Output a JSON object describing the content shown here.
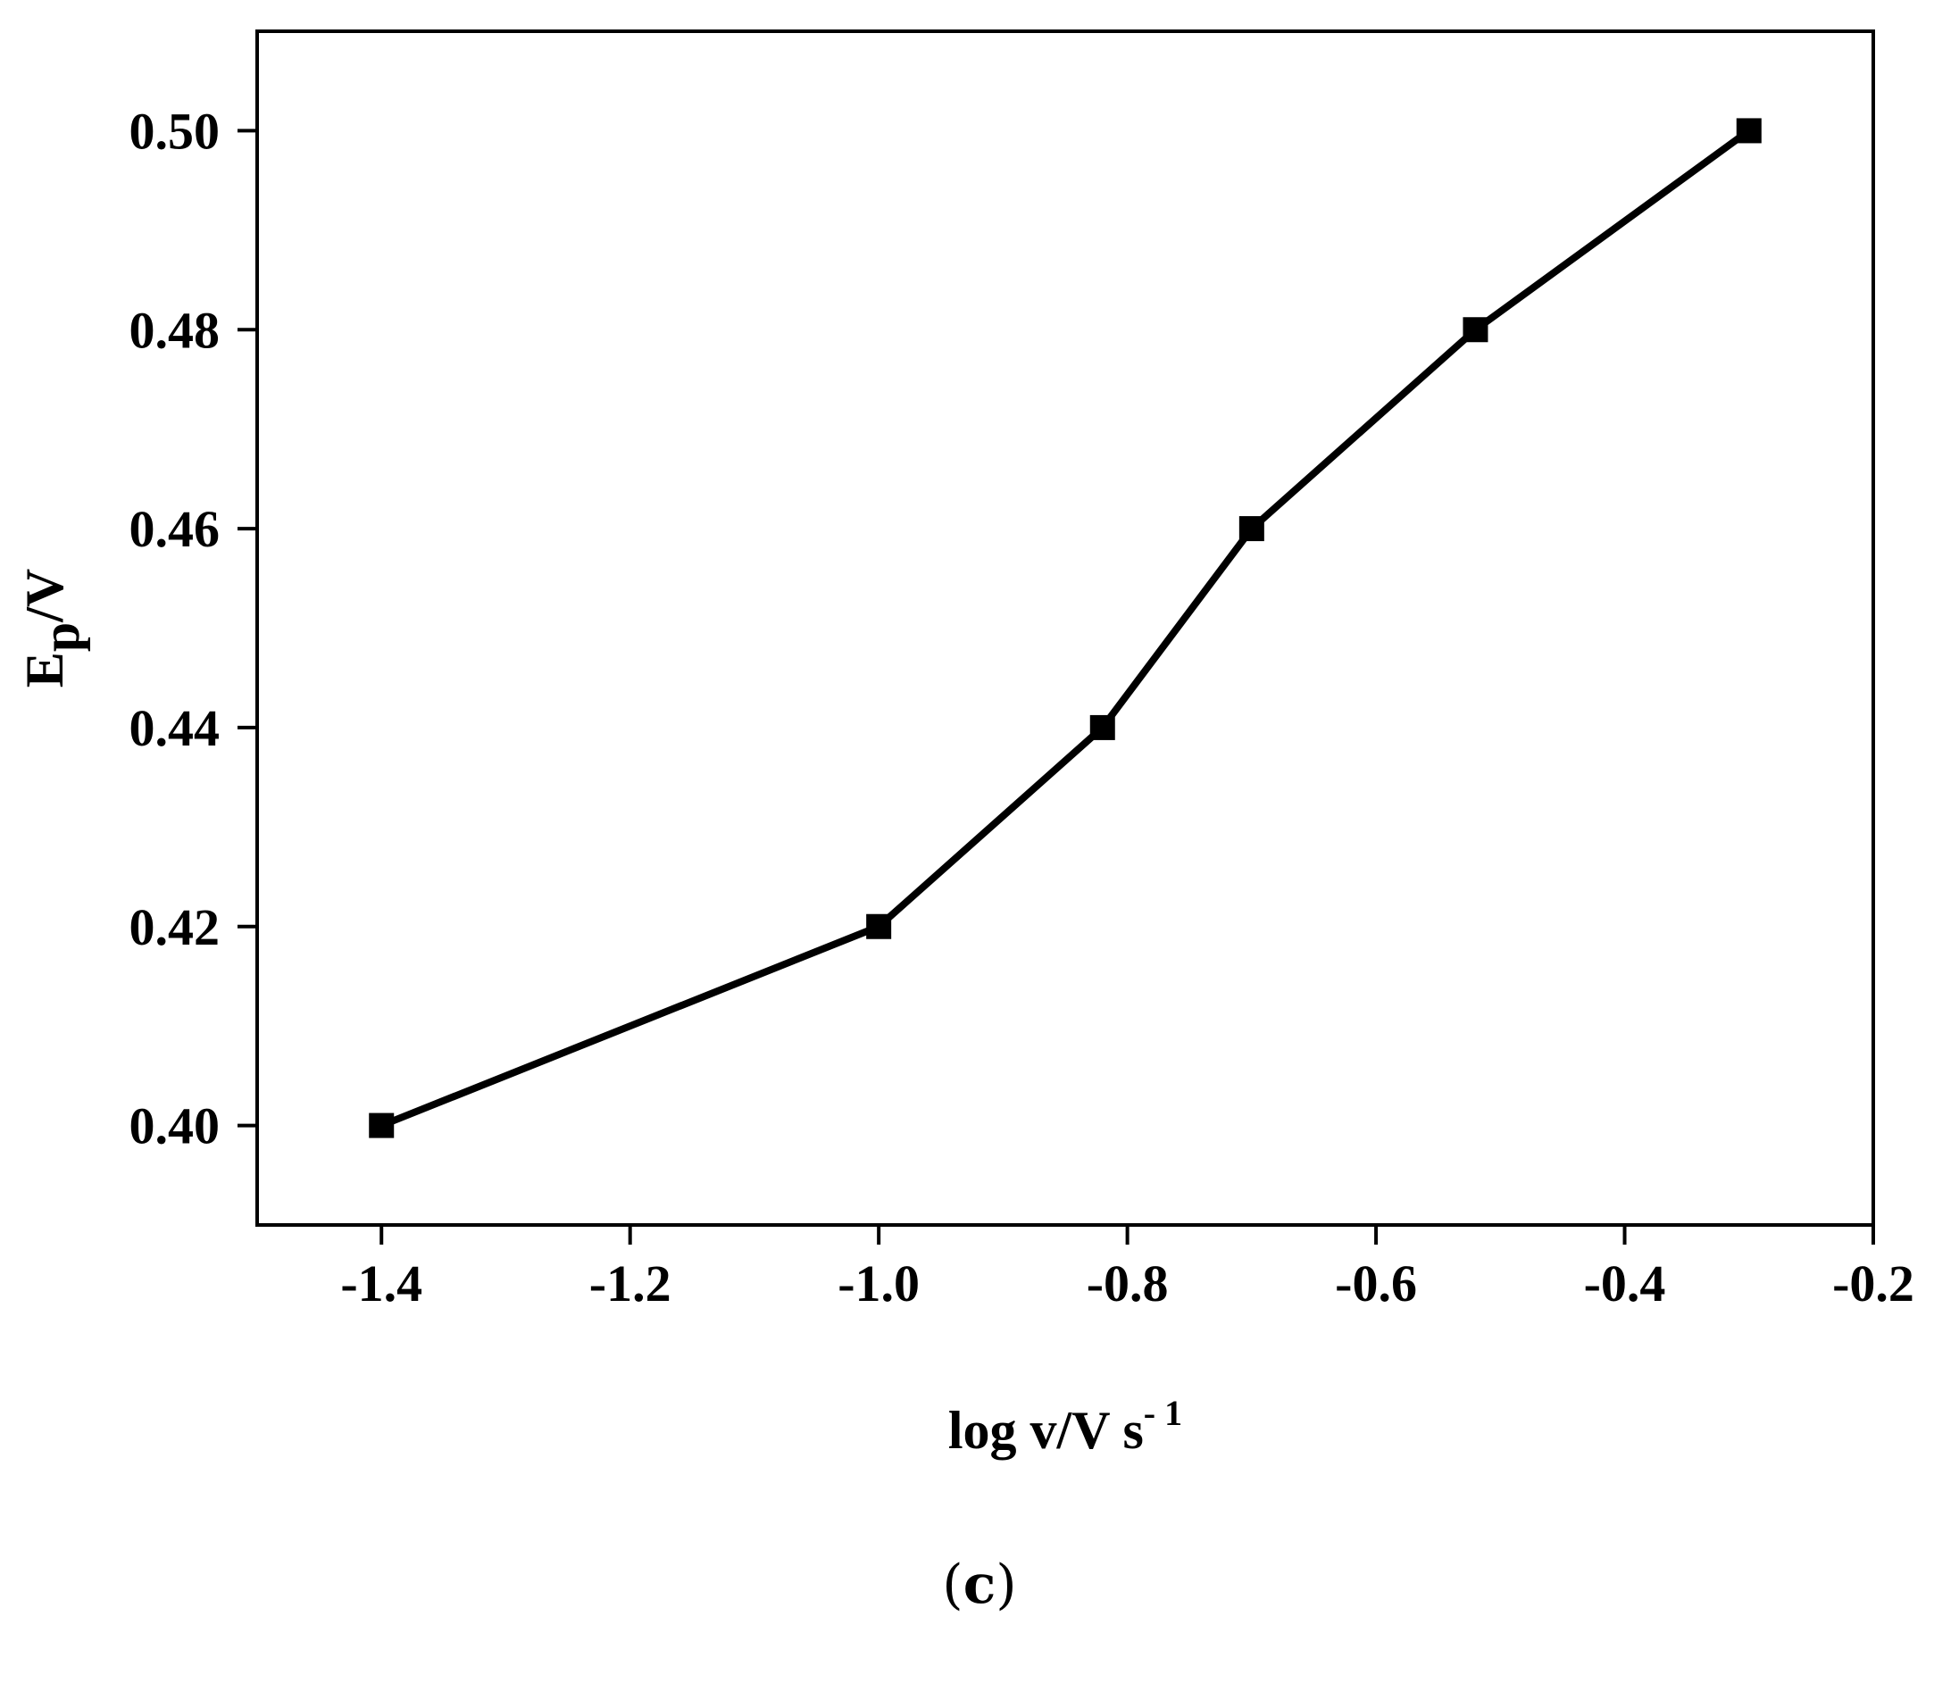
{
  "chart_data": {
    "type": "line",
    "xlabel": "log v/V s",
    "xlabel_superscript": "- 1",
    "ylabel_main": "E",
    "ylabel_subscript": "p",
    "ylabel_suffix": "/V",
    "xlim": [
      -1.5,
      -0.2
    ],
    "ylim": [
      0.39,
      0.51
    ],
    "xticks": [
      -1.4,
      -1.2,
      -1.0,
      -0.8,
      -0.6,
      -0.4,
      -0.2
    ],
    "xtick_labels": [
      "-1.4",
      "-1.2",
      "-1.0",
      "-0.8",
      "-0.6",
      "-0.4",
      "-0.2"
    ],
    "yticks": [
      0.4,
      0.42,
      0.44,
      0.46,
      0.48,
      0.5
    ],
    "ytick_labels": [
      "0.40",
      "0.42",
      "0.44",
      "0.46",
      "0.48",
      "0.50"
    ],
    "grid": false,
    "marker": "square",
    "series": [
      {
        "x": [
          -1.4,
          -1.0,
          -0.82,
          -0.7,
          -0.52,
          -0.3
        ],
        "y": [
          0.4,
          0.42,
          0.44,
          0.46,
          0.48,
          0.5
        ],
        "color": "#000000"
      }
    ]
  },
  "panel_label": {
    "open": "(",
    "letter": "c",
    "close": ")"
  }
}
